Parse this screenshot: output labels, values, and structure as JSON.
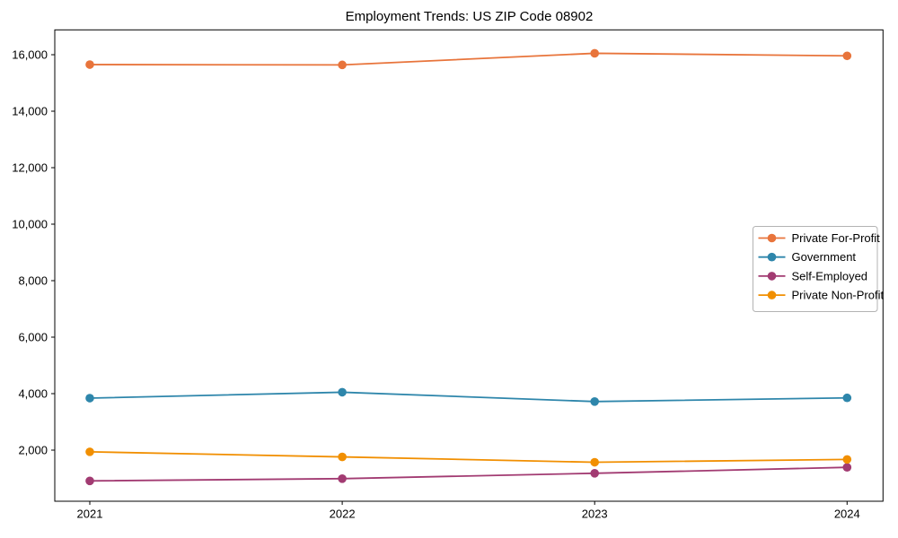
{
  "chart_data": {
    "type": "line",
    "title": "Employment Trends: US ZIP Code 08902",
    "xlabel": "",
    "ylabel": "",
    "categories": [
      "2021",
      "2022",
      "2023",
      "2024"
    ],
    "series": [
      {
        "name": "Private For-Profit",
        "color": "#e8743b",
        "values": [
          15650,
          15640,
          16050,
          15960
        ]
      },
      {
        "name": "Government",
        "color": "#2e86ab",
        "values": [
          3840,
          4050,
          3720,
          3850
        ]
      },
      {
        "name": "Self-Employed",
        "color": "#a23b72",
        "values": [
          910,
          990,
          1180,
          1390
        ]
      },
      {
        "name": "Private Non-Profit",
        "color": "#f18f01",
        "values": [
          1940,
          1760,
          1570,
          1670
        ]
      }
    ],
    "ylim": [
      190,
      16880
    ],
    "yticks": [
      2000,
      4000,
      6000,
      8000,
      10000,
      12000,
      14000,
      16000
    ],
    "ytick_labels": [
      "2,000",
      "4,000",
      "6,000",
      "8,000",
      "10,000",
      "12,000",
      "14,000",
      "16,000"
    ],
    "grid": false,
    "legend_position": "center right",
    "axis_color": "#000000",
    "text_color": "#000000",
    "legend_border_color": "#b3b3b3",
    "background_color": "#ffffff"
  }
}
